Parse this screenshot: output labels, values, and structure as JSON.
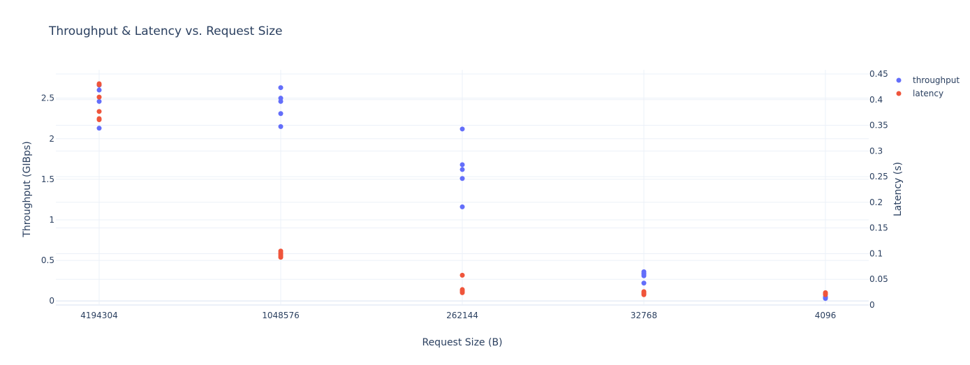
{
  "colors": {
    "throughput": "#636efa",
    "latency": "#ef553b",
    "grid": "#ebf0f8",
    "zeroline": "#ebf0f8",
    "text": "#2a3f5f"
  },
  "chart_data": {
    "type": "scatter",
    "title": "Throughput & Latency vs. Request Size",
    "xlabel": "Request Size (B)",
    "ylabel": "Throughput (GIBps)",
    "y2label": "Latency (s)",
    "categories": [
      "4194304",
      "1048576",
      "262144",
      "32768",
      "4096"
    ],
    "y_ticks": [
      "0",
      "0.5",
      "1",
      "1.5",
      "2",
      "2.5"
    ],
    "y2_ticks": [
      "0",
      "0.05",
      "0.1",
      "0.15",
      "0.2",
      "0.25",
      "0.3",
      "0.35",
      "0.4",
      "0.45"
    ],
    "ylim": [
      -0.05,
      2.85
    ],
    "y2lim": [
      0,
      0.45
    ],
    "grid": true,
    "legend_position": "top-right",
    "series": [
      {
        "name": "throughput",
        "axis": "y",
        "points": [
          {
            "x": "4194304",
            "y": 2.13
          },
          {
            "x": "4194304",
            "y": 2.46
          },
          {
            "x": "4194304",
            "y": 2.6
          },
          {
            "x": "4194304",
            "y": 2.66
          },
          {
            "x": "1048576",
            "y": 2.15
          },
          {
            "x": "1048576",
            "y": 2.31
          },
          {
            "x": "1048576",
            "y": 2.46
          },
          {
            "x": "1048576",
            "y": 2.5
          },
          {
            "x": "1048576",
            "y": 2.63
          },
          {
            "x": "262144",
            "y": 1.16
          },
          {
            "x": "262144",
            "y": 1.51
          },
          {
            "x": "262144",
            "y": 1.62
          },
          {
            "x": "262144",
            "y": 1.68
          },
          {
            "x": "262144",
            "y": 2.12
          },
          {
            "x": "32768",
            "y": 0.22
          },
          {
            "x": "32768",
            "y": 0.31
          },
          {
            "x": "32768",
            "y": 0.33
          },
          {
            "x": "32768",
            "y": 0.34
          },
          {
            "x": "32768",
            "y": 0.36
          },
          {
            "x": "4096",
            "y": 0.03
          },
          {
            "x": "4096",
            "y": 0.04
          },
          {
            "x": "4096",
            "y": 0.05
          }
        ]
      },
      {
        "name": "latency",
        "axis": "y2",
        "points": [
          {
            "x": "4194304",
            "y": 0.361
          },
          {
            "x": "4194304",
            "y": 0.363
          },
          {
            "x": "4194304",
            "y": 0.377
          },
          {
            "x": "4194304",
            "y": 0.405
          },
          {
            "x": "4194304",
            "y": 0.429
          },
          {
            "x": "4194304",
            "y": 0.431
          },
          {
            "x": "1048576",
            "y": 0.093
          },
          {
            "x": "1048576",
            "y": 0.096
          },
          {
            "x": "1048576",
            "y": 0.099
          },
          {
            "x": "1048576",
            "y": 0.102
          },
          {
            "x": "1048576",
            "y": 0.105
          },
          {
            "x": "262144",
            "y": 0.024
          },
          {
            "x": "262144",
            "y": 0.027
          },
          {
            "x": "262144",
            "y": 0.03
          },
          {
            "x": "262144",
            "y": 0.058
          },
          {
            "x": "32768",
            "y": 0.02
          },
          {
            "x": "32768",
            "y": 0.022
          },
          {
            "x": "32768",
            "y": 0.024
          },
          {
            "x": "32768",
            "y": 0.026
          },
          {
            "x": "4096",
            "y": 0.02
          },
          {
            "x": "4096",
            "y": 0.022
          },
          {
            "x": "4096",
            "y": 0.024
          }
        ]
      }
    ]
  }
}
